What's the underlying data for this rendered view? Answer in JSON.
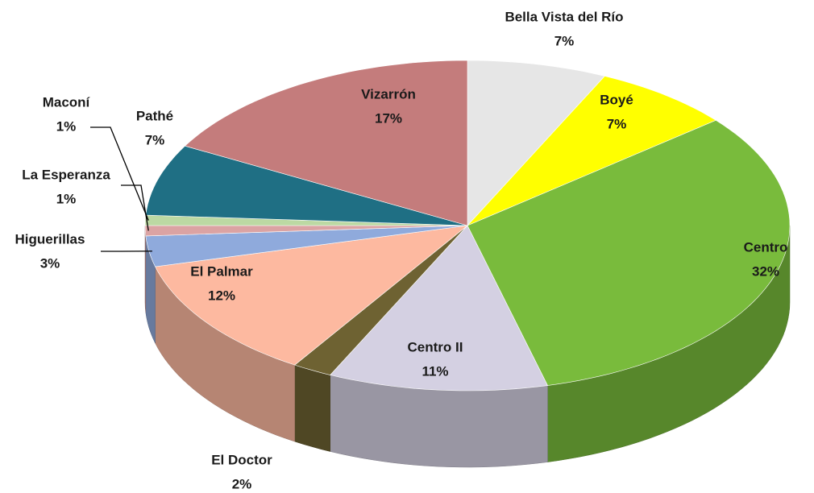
{
  "chart_data": {
    "type": "pie",
    "categories": [
      "Bella Vista del Río",
      "Boyé",
      "Centro",
      "Centro II",
      "El Doctor",
      "El Palmar",
      "Higuerillas",
      "La Esperanza",
      "Maconí",
      "Pathé",
      "Vizarrón"
    ],
    "values": [
      7,
      7,
      32,
      11,
      2,
      12,
      3,
      1,
      1,
      7,
      17
    ],
    "value_labels": [
      "7%",
      "7%",
      "32%",
      "11%",
      "2%",
      "12%",
      "3%",
      "1%",
      "1%",
      "7%",
      "17%"
    ],
    "colors": [
      "#e6e6e6",
      "#ffff00",
      "#79bb3c",
      "#d4d0e2",
      "#6e6232",
      "#fdb9a0",
      "#8faadc",
      "#dba3a3",
      "#bcd9a3",
      "#1f6f84",
      "#c47c7c"
    ]
  }
}
